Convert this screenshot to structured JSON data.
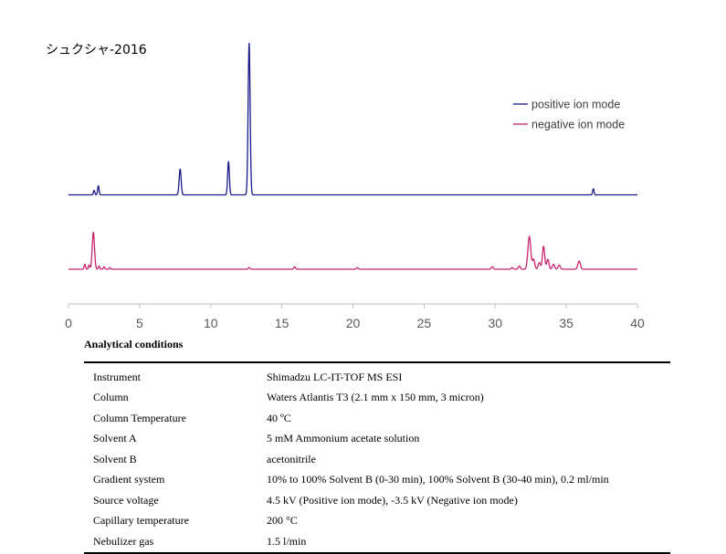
{
  "chart_data": {
    "type": "line",
    "title": "シュクシャ-2016",
    "xlim": [
      0,
      40
    ],
    "x_ticks": [
      "0",
      "5",
      "10",
      "15",
      "20",
      "25",
      "30",
      "35",
      "40"
    ],
    "grid": false,
    "legend_position": "top-right",
    "series": [
      {
        "name": "positive ion mode",
        "color": "#1a1a8c",
        "peaks": [
          {
            "x": 1.8,
            "h": 0.03,
            "w": 0.05
          },
          {
            "x": 2.1,
            "h": 0.06,
            "w": 0.05
          },
          {
            "x": 7.85,
            "h": 0.17,
            "w": 0.07
          },
          {
            "x": 11.25,
            "h": 0.22,
            "w": 0.06
          },
          {
            "x": 12.7,
            "h": 1.0,
            "w": 0.07
          },
          {
            "x": 36.9,
            "h": 0.04,
            "w": 0.05
          }
        ]
      },
      {
        "name": "negative ion mode",
        "color": "#c8246e",
        "peaks": [
          {
            "x": 1.15,
            "h": 0.06,
            "w": 0.05
          },
          {
            "x": 1.45,
            "h": 0.05,
            "w": 0.05
          },
          {
            "x": 1.75,
            "h": 0.45,
            "w": 0.08
          },
          {
            "x": 2.15,
            "h": 0.04,
            "w": 0.05
          },
          {
            "x": 2.5,
            "h": 0.03,
            "w": 0.05
          },
          {
            "x": 2.9,
            "h": 0.02,
            "w": 0.05
          },
          {
            "x": 12.7,
            "h": 0.02,
            "w": 0.06
          },
          {
            "x": 15.9,
            "h": 0.03,
            "w": 0.06
          },
          {
            "x": 20.3,
            "h": 0.02,
            "w": 0.06
          },
          {
            "x": 29.8,
            "h": 0.03,
            "w": 0.07
          },
          {
            "x": 31.2,
            "h": 0.02,
            "w": 0.07
          },
          {
            "x": 31.7,
            "h": 0.04,
            "w": 0.07
          },
          {
            "x": 32.4,
            "h": 0.4,
            "w": 0.1
          },
          {
            "x": 32.7,
            "h": 0.12,
            "w": 0.08
          },
          {
            "x": 33.1,
            "h": 0.08,
            "w": 0.08
          },
          {
            "x": 33.4,
            "h": 0.28,
            "w": 0.08
          },
          {
            "x": 33.7,
            "h": 0.12,
            "w": 0.08
          },
          {
            "x": 34.1,
            "h": 0.06,
            "w": 0.08
          },
          {
            "x": 34.5,
            "h": 0.05,
            "w": 0.08
          },
          {
            "x": 35.9,
            "h": 0.1,
            "w": 0.09
          }
        ]
      }
    ]
  },
  "conditions": {
    "heading": "Analytical conditions",
    "rows": [
      {
        "label": "Instrument",
        "value": "Shimadzu LC-IT-TOF MS ESI"
      },
      {
        "label": "Column",
        "value": "Waters Atlantis T3 (2.1 mm x 150 mm, 3 micron)"
      },
      {
        "label": "Column Temperature",
        "value": "40 ºC"
      },
      {
        "label": "Solvent A",
        "value": "5 mM Ammonium acetate solution"
      },
      {
        "label": "Solvent B",
        "value": "acetonitrile"
      },
      {
        "label": "Gradient system",
        "value": "10% to 100% Solvent B (0-30 min), 100% Solvent B (30-40 min), 0.2 ml/min"
      },
      {
        "label": "Source voltage",
        "value": "4.5 kV (Positive ion mode), -3.5 kV (Negative ion mode)"
      },
      {
        "label": "Capillary temperature",
        "value": "200 °C"
      },
      {
        "label": "Nebulizer gas",
        "value": "1.5 l/min"
      }
    ]
  }
}
